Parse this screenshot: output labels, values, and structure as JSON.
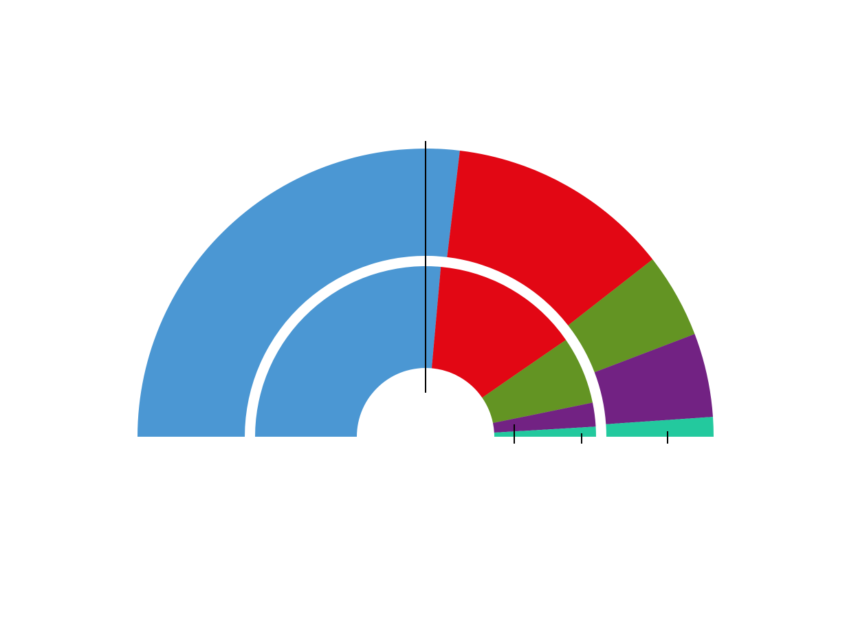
{
  "chart_data": {
    "type": "semicircle",
    "colors": [
      "#4b97d3",
      "#e20714",
      "#639423",
      "#722283",
      "#23c99e"
    ],
    "rings": [
      {
        "values": [
          53.8,
          25.1,
          9.5,
          9.4,
          2.2
        ]
      },
      {
        "values": [
          52.8,
          27.9,
          12.8,
          4.5,
          1.9
        ]
      }
    ]
  }
}
